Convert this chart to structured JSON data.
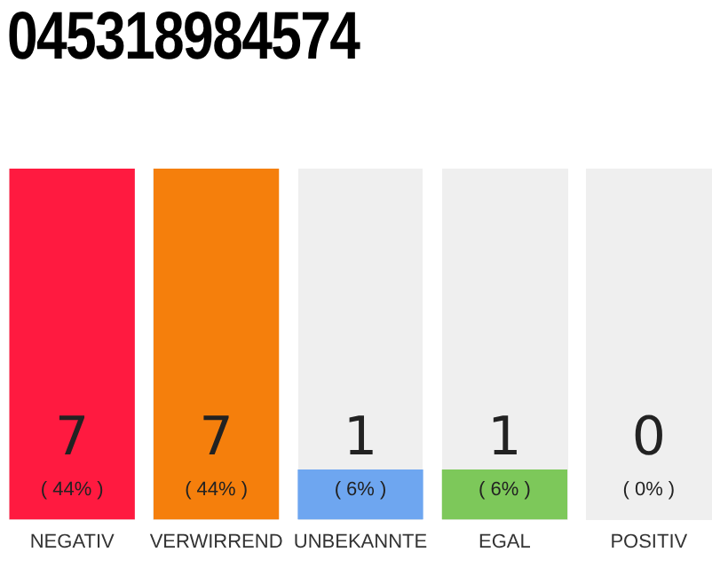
{
  "chart_data": {
    "type": "bar",
    "title": "045318984574",
    "categories": [
      "NEGATIV",
      "VERWIRREND",
      "UNBEKANNTE",
      "EGAL",
      "POSITIV"
    ],
    "values": [
      7,
      7,
      1,
      1,
      0
    ],
    "colors": [
      "#ff1a40",
      "#f57f0c",
      "#6ea6f0",
      "#7dc85a",
      "#e0e0e0"
    ],
    "ylim": [
      0,
      7
    ],
    "tick_labels": "x",
    "data_labels": true,
    "annotations": [
      "( 44% )",
      "( 44% )",
      "( 6% )",
      "( 6% )",
      "( 0% )"
    ],
    "grid": false,
    "legend": false
  }
}
